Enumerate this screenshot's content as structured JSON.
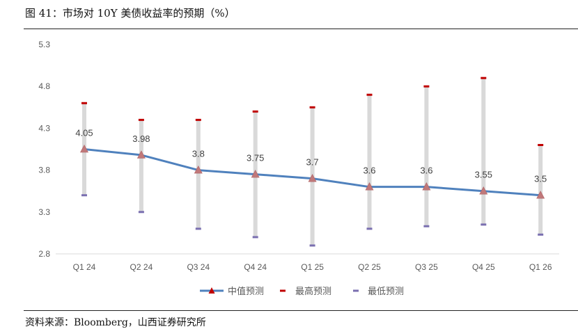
{
  "figure": {
    "title": "图 41：市场对 10Y 美债收益率的预期（%）",
    "source": "资料来源：Bloomberg，山西证券研究所"
  },
  "chart_data": {
    "type": "line",
    "title": "",
    "xlabel": "",
    "ylabel": "",
    "categories": [
      "Q1 24",
      "Q2 24",
      "Q3 24",
      "Q4 24",
      "Q1 25",
      "Q2 25",
      "Q3 25",
      "Q4 25",
      "Q1 26"
    ],
    "ylim": [
      2.8,
      5.3
    ],
    "yticks": [
      2.8,
      3.3,
      3.8,
      4.3,
      4.8,
      5.3
    ],
    "series": [
      {
        "name": "中值预测",
        "values": [
          4.05,
          3.98,
          3.8,
          3.75,
          3.7,
          3.6,
          3.6,
          3.55,
          3.5
        ],
        "labels": [
          "4.05",
          "3.98",
          "3.8",
          "3.75",
          "3.7",
          "3.6",
          "3.6",
          "3.55",
          "3.5"
        ],
        "color": "#4f81bd",
        "marker_color": "#c0787a"
      },
      {
        "name": "最高预测",
        "values": [
          4.6,
          4.4,
          4.4,
          4.5,
          4.55,
          4.7,
          4.8,
          4.9,
          4.1
        ],
        "color": "#c00000"
      },
      {
        "name": "最低预测",
        "values": [
          3.5,
          3.3,
          3.1,
          3.0,
          2.9,
          3.1,
          3.13,
          3.15,
          3.03
        ],
        "color": "#7a6fb0"
      }
    ],
    "range_bar_color": "#d9d9d9",
    "grid": false,
    "legend_position": "bottom"
  }
}
